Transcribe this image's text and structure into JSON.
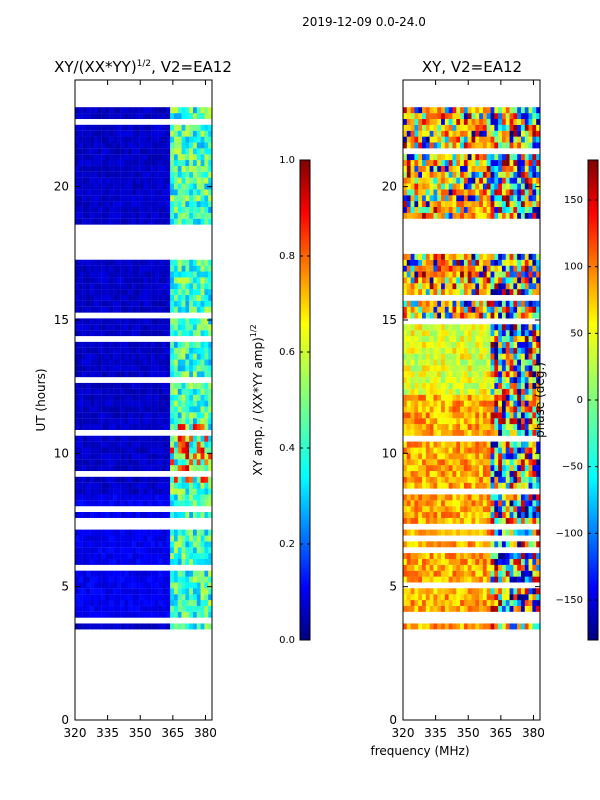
{
  "figure": {
    "suptitle": "2019-12-09 0.0-24.0",
    "shared_xlabel": "frequency (MHz)"
  },
  "chart_data": [
    {
      "type": "heatmap",
      "title_base": "XY/(XX*YY)",
      "title_sup": "1/2",
      "title_suffix": ", V2=EA12",
      "xlabel": "frequency (MHz)",
      "ylabel": "UT (hours)",
      "xlim": [
        320,
        383
      ],
      "ylim": [
        0,
        24
      ],
      "xticks": [
        320,
        335,
        350,
        365,
        380
      ],
      "yticks": [
        0,
        5,
        10,
        15,
        20
      ],
      "grid": false,
      "colormap": "jet",
      "colorbar": {
        "label_base": "XY amp. / (XX*YY amp)",
        "label_sup": "1/2",
        "range": [
          0.0,
          1.0
        ],
        "ticks": [
          "0.0",
          "0.2",
          "0.4",
          "0.6",
          "0.8",
          "1.0"
        ]
      },
      "data_coverage_hours": [
        3.4,
        22.8
      ],
      "notes": "normalized XY amplitude mostly low (~0.05) below 363 MHz; elevated (~0.3-0.6) between 363 and 383 MHz, with bursts near 0.9 around 9-11 h"
    },
    {
      "type": "heatmap",
      "title": "XY, V2=EA12",
      "xlabel": "frequency (MHz)",
      "ylabel": "",
      "xlim": [
        320,
        383
      ],
      "ylim": [
        0,
        24
      ],
      "xticks": [
        320,
        335,
        350,
        365,
        380
      ],
      "yticks": [
        0,
        5,
        10,
        15,
        20
      ],
      "grid": false,
      "colormap": "jet",
      "colorbar": {
        "label": "phase (deg.)",
        "range": [
          -180,
          180
        ],
        "ticks": [
          "−150",
          "−100",
          "−50",
          "0",
          "50",
          "100",
          "150"
        ]
      },
      "data_coverage_hours": [
        3.4,
        22.8
      ],
      "notes": "XY phase mostly +30 to +90 deg below 360 MHz, wrapping through -150 to +150 deg above 360 MHz"
    }
  ]
}
